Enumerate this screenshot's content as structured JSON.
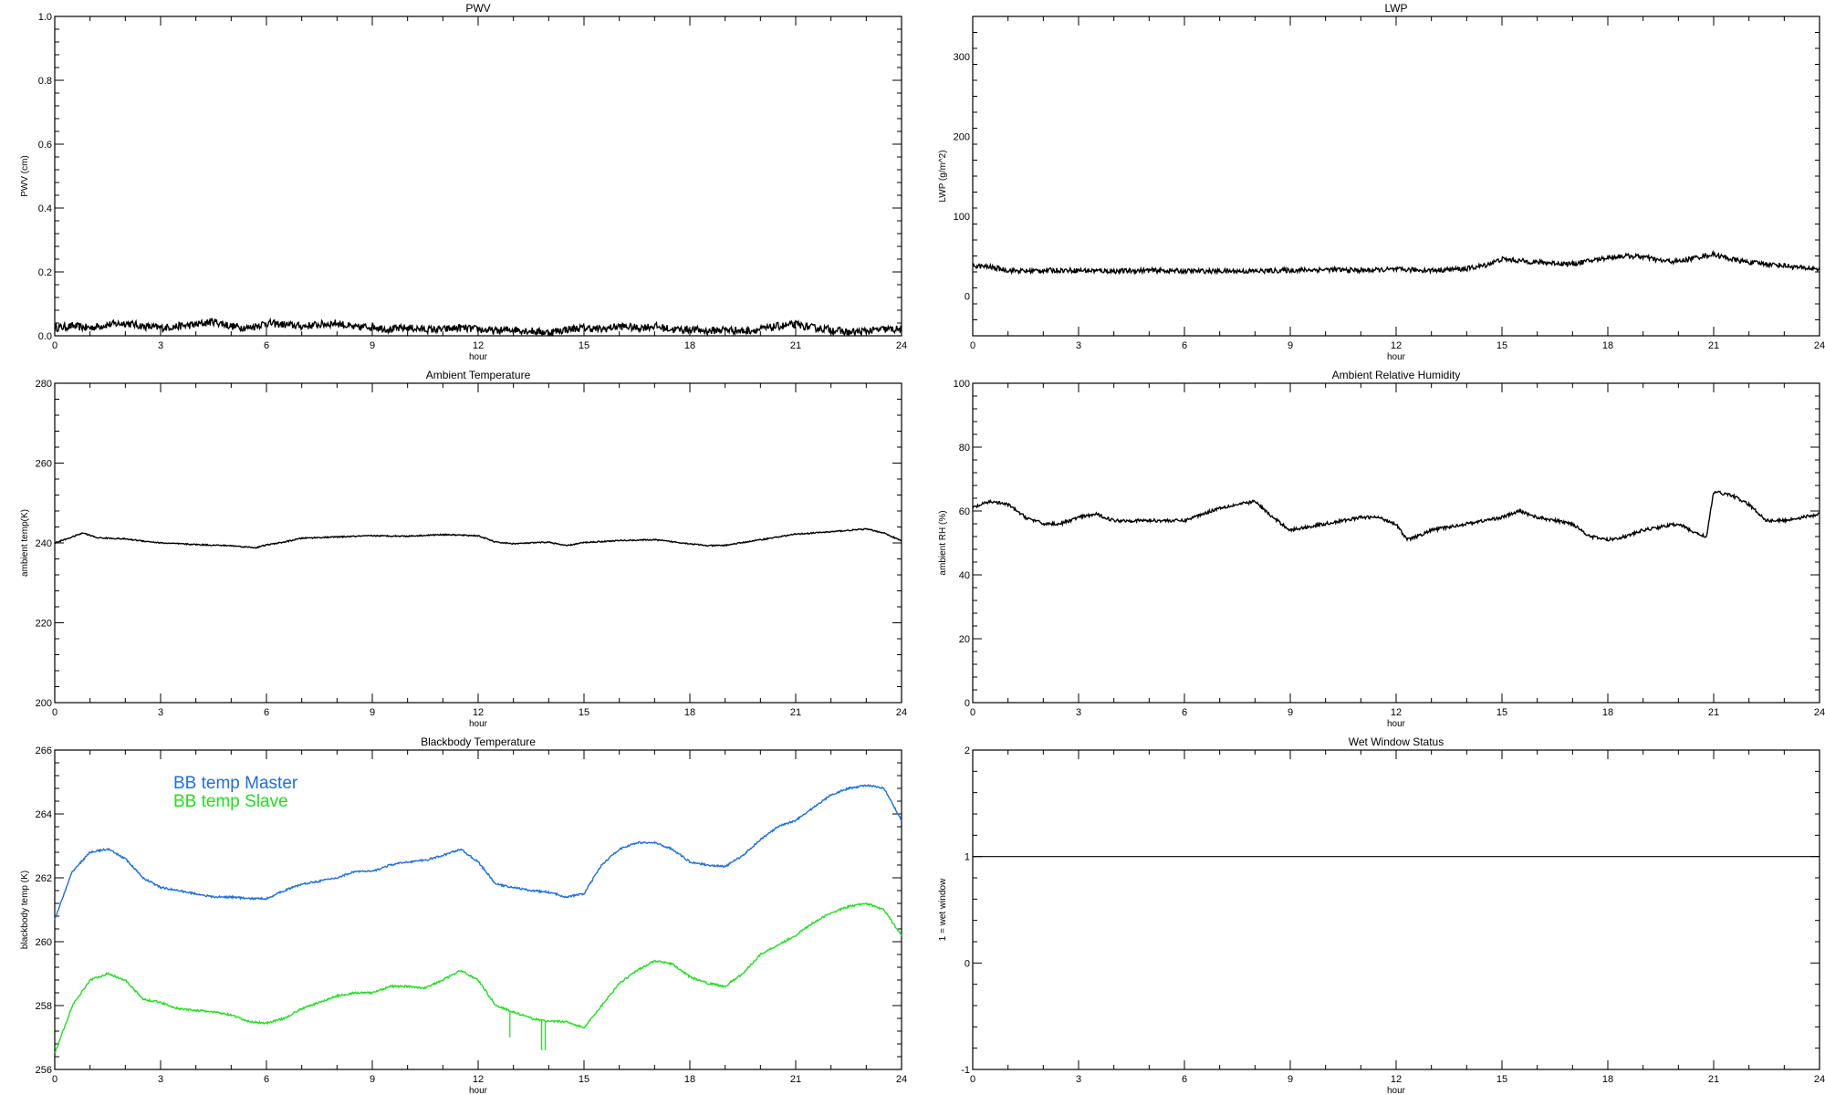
{
  "chart_data": [
    {
      "type": "line",
      "title": "PWV",
      "xlabel": "hour",
      "ylabel": "PWV (cm)",
      "xlim": [
        0,
        24
      ],
      "ylim": [
        0,
        1.0
      ],
      "xticks": [
        "0",
        "3",
        "6",
        "9",
        "12",
        "15",
        "18",
        "21",
        "24"
      ],
      "yticks": [
        0.0,
        0.2,
        0.4,
        0.6,
        0.8,
        1.0
      ],
      "ytick_labels": [
        "0.0",
        "0.2",
        "0.4",
        "0.6",
        "0.8",
        "1.0"
      ],
      "grid": false,
      "series": [
        {
          "color": "#000000",
          "noise": 0.012,
          "x": [
            0,
            0.5,
            1,
            1.5,
            2,
            2.5,
            3,
            3.5,
            4,
            4.5,
            5,
            5.5,
            6,
            6.5,
            7,
            7.5,
            8,
            8.5,
            9,
            9.5,
            10,
            10.5,
            11,
            11.5,
            12,
            12.5,
            13,
            13.5,
            14,
            14.5,
            15,
            15.5,
            16,
            16.5,
            17,
            17.5,
            18,
            18.5,
            19,
            19.5,
            20,
            20.5,
            21,
            21.5,
            22,
            22.5,
            23,
            23.5,
            24
          ],
          "y": [
            0.025,
            0.03,
            0.025,
            0.035,
            0.04,
            0.03,
            0.025,
            0.03,
            0.035,
            0.045,
            0.03,
            0.025,
            0.04,
            0.035,
            0.03,
            0.035,
            0.04,
            0.025,
            0.03,
            0.02,
            0.025,
            0.02,
            0.02,
            0.025,
            0.02,
            0.015,
            0.02,
            0.015,
            0.01,
            0.02,
            0.025,
            0.02,
            0.03,
            0.025,
            0.03,
            0.02,
            0.02,
            0.015,
            0.02,
            0.015,
            0.02,
            0.03,
            0.035,
            0.025,
            0.02,
            0.01,
            0.015,
            0.02,
            0.02
          ]
        }
      ]
    },
    {
      "type": "line",
      "title": "LWP",
      "xlabel": "hour",
      "ylabel": "LWP (g/m^2)",
      "xlim": [
        0,
        24
      ],
      "ylim": [
        -50,
        350
      ],
      "xticks": [
        "0",
        "3",
        "6",
        "9",
        "12",
        "15",
        "18",
        "21",
        "24"
      ],
      "yticks": [
        0,
        100,
        200,
        300
      ],
      "ytick_labels": [
        "0",
        "100",
        "200",
        "300"
      ],
      "grid": false,
      "series": [
        {
          "color": "#000000",
          "noise": 3,
          "x": [
            0,
            0.5,
            1,
            1.5,
            2,
            3,
            4,
            5,
            6,
            7,
            8,
            9,
            10,
            11,
            12,
            13,
            14,
            14.5,
            15,
            15.5,
            16,
            16.5,
            17,
            17.5,
            18,
            18.5,
            19,
            19.5,
            20,
            20.5,
            21,
            21.5,
            22,
            22.5,
            23,
            23.5,
            24
          ],
          "y": [
            38,
            36,
            32,
            31,
            32,
            32,
            31,
            32,
            31,
            31,
            31,
            32,
            33,
            32,
            33,
            32,
            34,
            38,
            46,
            44,
            42,
            41,
            40,
            44,
            48,
            50,
            49,
            44,
            43,
            48,
            52,
            46,
            42,
            40,
            38,
            35,
            34
          ]
        }
      ]
    },
    {
      "type": "line",
      "title": "Ambient Temperature",
      "xlabel": "hour",
      "ylabel": "ambient temp(K)",
      "xlim": [
        0,
        24
      ],
      "ylim": [
        200,
        280
      ],
      "xticks": [
        "0",
        "3",
        "6",
        "9",
        "12",
        "15",
        "18",
        "21",
        "24"
      ],
      "yticks": [
        200,
        220,
        240,
        260,
        280
      ],
      "ytick_labels": [
        "200",
        "220",
        "240",
        "260",
        "280"
      ],
      "grid": false,
      "series": [
        {
          "color": "#000000",
          "noise": 0.15,
          "x": [
            0,
            0.5,
            0.8,
            1.2,
            2,
            2.5,
            3,
            4,
            5,
            5.7,
            6,
            6.5,
            7,
            8,
            9,
            10,
            11,
            12,
            12.5,
            13,
            14,
            14.5,
            15,
            16,
            17,
            18,
            18.5,
            19,
            20,
            21,
            22,
            23,
            23.5,
            24
          ],
          "y": [
            240,
            241.5,
            242.5,
            241.3,
            241,
            240.5,
            240,
            239.6,
            239.3,
            238.8,
            239.5,
            240.2,
            241.2,
            241.5,
            241.8,
            241.7,
            242.1,
            241.8,
            240.2,
            239.8,
            240.2,
            239.3,
            240.1,
            240.6,
            240.8,
            239.8,
            239.3,
            239.4,
            240.8,
            242.2,
            242.8,
            243.5,
            242.5,
            240.5
          ]
        }
      ]
    },
    {
      "type": "line",
      "title": "Ambient Relative Humidity",
      "xlabel": "hour",
      "ylabel": "ambient RH (%)",
      "xlim": [
        0,
        24
      ],
      "ylim": [
        0,
        100
      ],
      "xticks": [
        "0",
        "3",
        "6",
        "9",
        "12",
        "15",
        "18",
        "21",
        "24"
      ],
      "yticks": [
        0,
        20,
        40,
        60,
        80,
        100
      ],
      "ytick_labels": [
        "0",
        "20",
        "40",
        "60",
        "80",
        "100"
      ],
      "grid": false,
      "series": [
        {
          "color": "#000000",
          "noise": 0.5,
          "x": [
            0,
            0.5,
            1,
            1.5,
            2,
            2.5,
            3,
            3.5,
            4,
            5,
            6,
            6.5,
            7,
            7.5,
            8,
            8.5,
            9,
            9.5,
            10,
            10.5,
            11,
            11.5,
            12,
            12.3,
            12.6,
            13,
            13.5,
            14,
            14.5,
            15,
            15.5,
            16,
            16.5,
            17,
            17.5,
            18,
            18.5,
            19,
            19.5,
            20,
            20.5,
            20.8,
            21,
            21.5,
            22,
            22.5,
            23,
            23.5,
            24
          ],
          "y": [
            61,
            63,
            62,
            58,
            56,
            56,
            58,
            59,
            57,
            57,
            57,
            59,
            61,
            62,
            63,
            58,
            54,
            55,
            56,
            57,
            58,
            58,
            56,
            51,
            52,
            54,
            55,
            56,
            57,
            58,
            60,
            58,
            57,
            56,
            52,
            51,
            52,
            54,
            55,
            56,
            53,
            52,
            66,
            65,
            62,
            57,
            57,
            58,
            59
          ]
        }
      ]
    },
    {
      "type": "line",
      "title": "Blackbody Temperature",
      "xlabel": "hour",
      "ylabel": "blackbody temp (K)",
      "xlim": [
        0,
        24
      ],
      "ylim": [
        256,
        266
      ],
      "xticks": [
        "0",
        "3",
        "6",
        "9",
        "12",
        "15",
        "18",
        "21",
        "24"
      ],
      "yticks": [
        256,
        258,
        260,
        262,
        264,
        266
      ],
      "ytick_labels": [
        "256",
        "258",
        "260",
        "262",
        "264",
        "266"
      ],
      "grid": false,
      "legend_position": "top-left",
      "series": [
        {
          "name": "BB temp Master",
          "color": "#1e6fe0",
          "noise": 0.03,
          "x": [
            0,
            0.5,
            1,
            1.5,
            2,
            2.5,
            3,
            3.5,
            4,
            4.5,
            5,
            5.5,
            6,
            6.5,
            7,
            7.5,
            8,
            8.5,
            9,
            9.5,
            10,
            10.5,
            11,
            11.5,
            12,
            12.5,
            13,
            13.5,
            14,
            14.5,
            15,
            15.5,
            16,
            16.5,
            17,
            17.5,
            18,
            18.5,
            19,
            19.5,
            20,
            20.5,
            21,
            21.5,
            22,
            22.5,
            23,
            23.5,
            24
          ],
          "y": [
            260.7,
            262.2,
            262.8,
            262.9,
            262.6,
            262.0,
            261.7,
            261.6,
            261.5,
            261.4,
            261.4,
            261.35,
            261.35,
            261.6,
            261.8,
            261.9,
            262.0,
            262.2,
            262.2,
            262.4,
            262.5,
            262.55,
            262.7,
            262.9,
            262.5,
            261.8,
            261.7,
            261.6,
            261.55,
            261.4,
            261.5,
            262.4,
            262.9,
            263.1,
            263.1,
            262.9,
            262.5,
            262.4,
            262.35,
            262.7,
            263.2,
            263.6,
            263.8,
            264.2,
            264.6,
            264.8,
            264.9,
            264.8,
            263.8
          ]
        },
        {
          "name": "BB temp Slave",
          "color": "#22dd22",
          "noise": 0.03,
          "x": [
            0,
            0.5,
            1,
            1.5,
            2,
            2.5,
            3,
            3.5,
            4,
            4.5,
            5,
            5.5,
            6,
            6.5,
            7,
            7.5,
            8,
            8.5,
            9,
            9.5,
            10,
            10.5,
            11,
            11.5,
            12,
            12.5,
            13,
            13.5,
            14,
            14.5,
            15,
            15.5,
            16,
            16.5,
            17,
            17.5,
            18,
            18.5,
            19,
            19.5,
            20,
            20.5,
            21,
            21.5,
            22,
            22.5,
            23,
            23.5,
            24
          ],
          "y": [
            256.5,
            258.0,
            258.8,
            259.0,
            258.8,
            258.2,
            258.1,
            257.9,
            257.85,
            257.8,
            257.7,
            257.5,
            257.45,
            257.6,
            257.9,
            258.1,
            258.3,
            258.4,
            258.4,
            258.6,
            258.6,
            258.55,
            258.8,
            259.1,
            258.8,
            258.0,
            257.8,
            257.6,
            257.5,
            257.5,
            257.3,
            258.0,
            258.7,
            259.1,
            259.4,
            259.3,
            258.9,
            258.7,
            258.6,
            259.0,
            259.6,
            259.9,
            260.2,
            260.6,
            260.9,
            261.1,
            261.2,
            261.0,
            260.2
          ]
        }
      ],
      "spikes": [
        {
          "series": 1,
          "x": 12.9,
          "to": 257.0
        },
        {
          "series": 1,
          "x": 13.8,
          "to": 256.6
        },
        {
          "series": 1,
          "x": 13.9,
          "to": 256.6
        }
      ]
    },
    {
      "type": "line",
      "title": "Wet Window Status",
      "xlabel": "hour",
      "ylabel": "1 = wet window",
      "xlim": [
        0,
        24
      ],
      "ylim": [
        -1,
        2
      ],
      "xticks": [
        "0",
        "3",
        "6",
        "9",
        "12",
        "15",
        "18",
        "21",
        "24"
      ],
      "yticks": [
        -1,
        0,
        1,
        2
      ],
      "ytick_labels": [
        "-1",
        "0",
        "1",
        "2"
      ],
      "grid": false,
      "series": [
        {
          "color": "#000000",
          "noise": 0,
          "x": [
            0,
            24
          ],
          "y": [
            1,
            1
          ]
        }
      ]
    }
  ]
}
